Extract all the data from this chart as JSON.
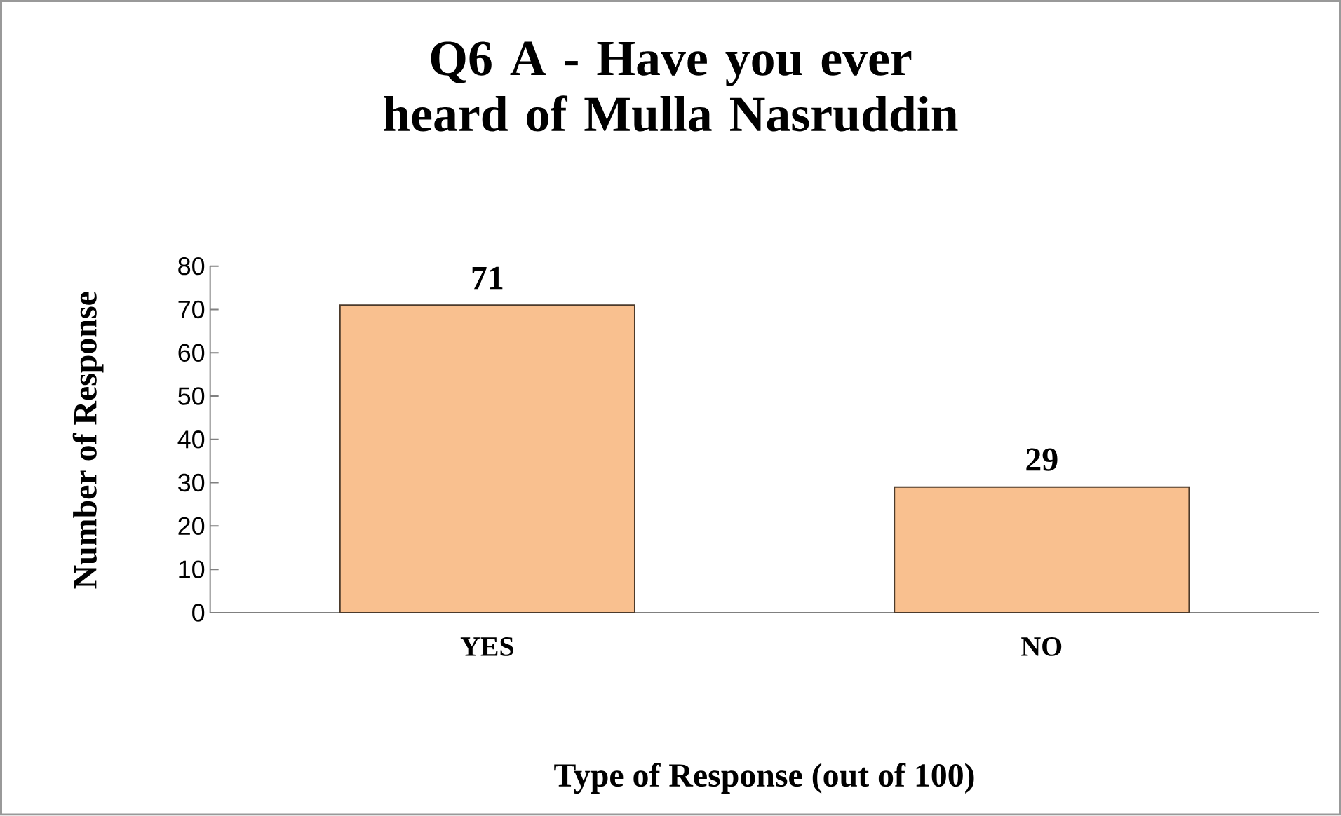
{
  "chart_data": {
    "type": "bar",
    "title": "Q6 A - Have you ever heard of Mulla Nasruddin",
    "xlabel": "Type of Response (out of 100)",
    "ylabel": "Number of Response",
    "categories": [
      "YES",
      "NO"
    ],
    "values": [
      71,
      29
    ],
    "color": "#f9c08f",
    "ylim": [
      0,
      80
    ],
    "yticks": [
      0,
      10,
      20,
      30,
      40,
      50,
      60,
      70,
      80
    ],
    "data_labels": true
  }
}
